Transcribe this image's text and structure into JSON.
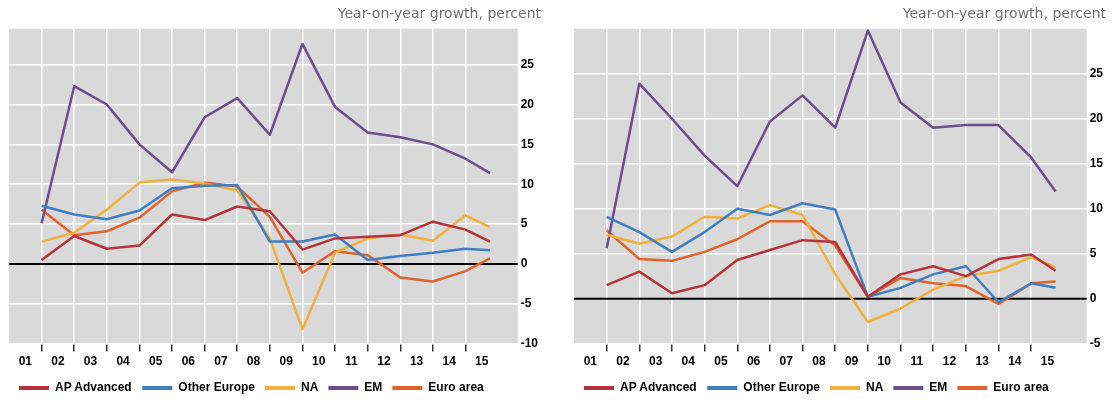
{
  "chart_data": [
    {
      "type": "line",
      "ylabel": "Year-on-year growth, percent",
      "x": [
        1,
        2,
        3,
        4,
        5,
        6,
        7,
        8,
        9,
        10,
        11,
        12,
        13,
        14,
        14.75
      ],
      "xlim": [
        0,
        15.6
      ],
      "xticks": [
        {
          "value": 0.5,
          "label": "01"
        },
        {
          "value": 1.5,
          "label": "02"
        },
        {
          "value": 2.5,
          "label": "03"
        },
        {
          "value": 3.5,
          "label": "04"
        },
        {
          "value": 4.5,
          "label": "05"
        },
        {
          "value": 5.5,
          "label": "06"
        },
        {
          "value": 6.5,
          "label": "07"
        },
        {
          "value": 7.5,
          "label": "08"
        },
        {
          "value": 8.5,
          "label": "09"
        },
        {
          "value": 9.5,
          "label": "10"
        },
        {
          "value": 10.5,
          "label": "11"
        },
        {
          "value": 11.5,
          "label": "12"
        },
        {
          "value": 12.5,
          "label": "13"
        },
        {
          "value": 13.5,
          "label": "14"
        },
        {
          "value": 14.5,
          "label": "15"
        },
        {
          "value": 1,
          "label": null
        },
        {
          "value": 2,
          "label": null
        },
        {
          "value": 3,
          "label": null
        },
        {
          "value": 4,
          "label": null
        },
        {
          "value": 5,
          "label": null
        },
        {
          "value": 6,
          "label": null
        },
        {
          "value": 7,
          "label": null
        },
        {
          "value": 8,
          "label": null
        },
        {
          "value": 9,
          "label": null
        },
        {
          "value": 10,
          "label": null
        },
        {
          "value": 11,
          "label": null
        },
        {
          "value": 12,
          "label": null
        },
        {
          "value": 13,
          "label": null
        },
        {
          "value": 14,
          "label": null
        }
      ],
      "ylim": [
        -10,
        29.5
      ],
      "yticks": [
        -10,
        -5,
        0,
        5,
        10,
        15,
        20,
        25
      ],
      "series": [
        {
          "name": "AP Advanced",
          "color": "#b5343c",
          "values": [
            0.5,
            3.5,
            1.9,
            2.3,
            6.2,
            5.5,
            7.2,
            6.6,
            1.8,
            3.2,
            3.4,
            3.6,
            5.3,
            4.3,
            2.8
          ]
        },
        {
          "name": "Other Europe",
          "color": "#3f7fc1",
          "values": [
            7.3,
            6.2,
            5.6,
            6.7,
            9.5,
            9.8,
            9.9,
            2.8,
            2.8,
            3.7,
            0.5,
            1,
            1.4,
            1.9,
            1.7
          ]
        },
        {
          "name": "NA",
          "color": "#f0b03c",
          "values": [
            2.8,
            3.9,
            6.8,
            10.2,
            10.6,
            10.1,
            9.2,
            3.2,
            -8.2,
            1.4,
            3.2,
            3.7,
            2.9,
            6.1,
            4.6
          ]
        },
        {
          "name": "EM",
          "color": "#6b4e8c",
          "values": [
            5.1,
            22.3,
            20,
            15,
            11.5,
            18.4,
            20.8,
            16.2,
            27.6,
            19.7,
            16.5,
            15.9,
            15,
            13.2,
            11.4
          ]
        },
        {
          "name": "Euro area",
          "color": "#e0622c",
          "values": [
            6.8,
            3.6,
            4.1,
            5.8,
            9.1,
            10.2,
            9.7,
            5.9,
            -1.1,
            1.6,
            1.1,
            -1.7,
            -2.2,
            -0.9,
            0.7
          ]
        }
      ],
      "ref_lines": [
        {
          "axis": "y",
          "value": 0,
          "color": "#000000"
        }
      ],
      "grid": true,
      "legend": "bottom"
    },
    {
      "type": "line",
      "ylabel": "Year-on-year growth, percent",
      "x": [
        1,
        2,
        3,
        4,
        5,
        6,
        7,
        8,
        9,
        10,
        11,
        12,
        13,
        14,
        14.75
      ],
      "xlim": [
        0,
        15.7
      ],
      "xticks": [
        {
          "value": 0.5,
          "label": "01"
        },
        {
          "value": 1.5,
          "label": "02"
        },
        {
          "value": 2.5,
          "label": "03"
        },
        {
          "value": 3.5,
          "label": "04"
        },
        {
          "value": 4.5,
          "label": "05"
        },
        {
          "value": 5.5,
          "label": "06"
        },
        {
          "value": 6.5,
          "label": "07"
        },
        {
          "value": 7.5,
          "label": "08"
        },
        {
          "value": 8.5,
          "label": "09"
        },
        {
          "value": 9.5,
          "label": "10"
        },
        {
          "value": 10.5,
          "label": "11"
        },
        {
          "value": 11.5,
          "label": "12"
        },
        {
          "value": 12.5,
          "label": "13"
        },
        {
          "value": 13.5,
          "label": "14"
        },
        {
          "value": 14.5,
          "label": "15"
        },
        {
          "value": 1,
          "label": null
        },
        {
          "value": 2,
          "label": null
        },
        {
          "value": 3,
          "label": null
        },
        {
          "value": 4,
          "label": null
        },
        {
          "value": 5,
          "label": null
        },
        {
          "value": 6,
          "label": null
        },
        {
          "value": 7,
          "label": null
        },
        {
          "value": 8,
          "label": null
        },
        {
          "value": 9,
          "label": null
        },
        {
          "value": 10,
          "label": null
        },
        {
          "value": 11,
          "label": null
        },
        {
          "value": 12,
          "label": null
        },
        {
          "value": 13,
          "label": null
        },
        {
          "value": 14,
          "label": null
        }
      ],
      "ylim": [
        -5,
        30
      ],
      "yticks": [
        -5,
        0,
        5,
        10,
        15,
        20,
        25
      ],
      "series": [
        {
          "name": "AP Advanced",
          "color": "#b5343c",
          "values": [
            1.5,
            3,
            0.6,
            1.5,
            4.3,
            5.4,
            6.5,
            6.3,
            0.2,
            2.7,
            3.6,
            2.5,
            4.4,
            4.9,
            3.1
          ]
        },
        {
          "name": "Other Europe",
          "color": "#3f7fc1",
          "values": [
            9.1,
            7.4,
            5.2,
            7.4,
            10,
            9.3,
            10.6,
            9.9,
            0.2,
            1.2,
            2.7,
            3.6,
            -0.4,
            1.7,
            1.2
          ]
        },
        {
          "name": "NA",
          "color": "#f0b03c",
          "values": [
            7.1,
            6.1,
            6.9,
            9.1,
            8.9,
            10.4,
            9.3,
            2.7,
            -2.6,
            -1.1,
            1,
            2.5,
            3.1,
            4.6,
            3.5
          ]
        },
        {
          "name": "EM",
          "color": "#6b4e8c",
          "values": [
            5.6,
            23.9,
            20,
            15.9,
            12.5,
            19.7,
            22.6,
            19,
            29.8,
            21.8,
            19,
            19.3,
            19.3,
            15.7,
            11.9
          ]
        },
        {
          "name": "Euro area",
          "color": "#e0622c",
          "values": [
            7.6,
            4.4,
            4.2,
            5.2,
            6.6,
            8.6,
            8.6,
            5.9,
            0.2,
            2.3,
            1.7,
            1.4,
            -0.6,
            1.7,
            1.9
          ]
        }
      ],
      "ref_lines": [
        {
          "axis": "y",
          "value": 0,
          "color": "#000000"
        }
      ],
      "grid": true,
      "legend": "bottom"
    }
  ]
}
